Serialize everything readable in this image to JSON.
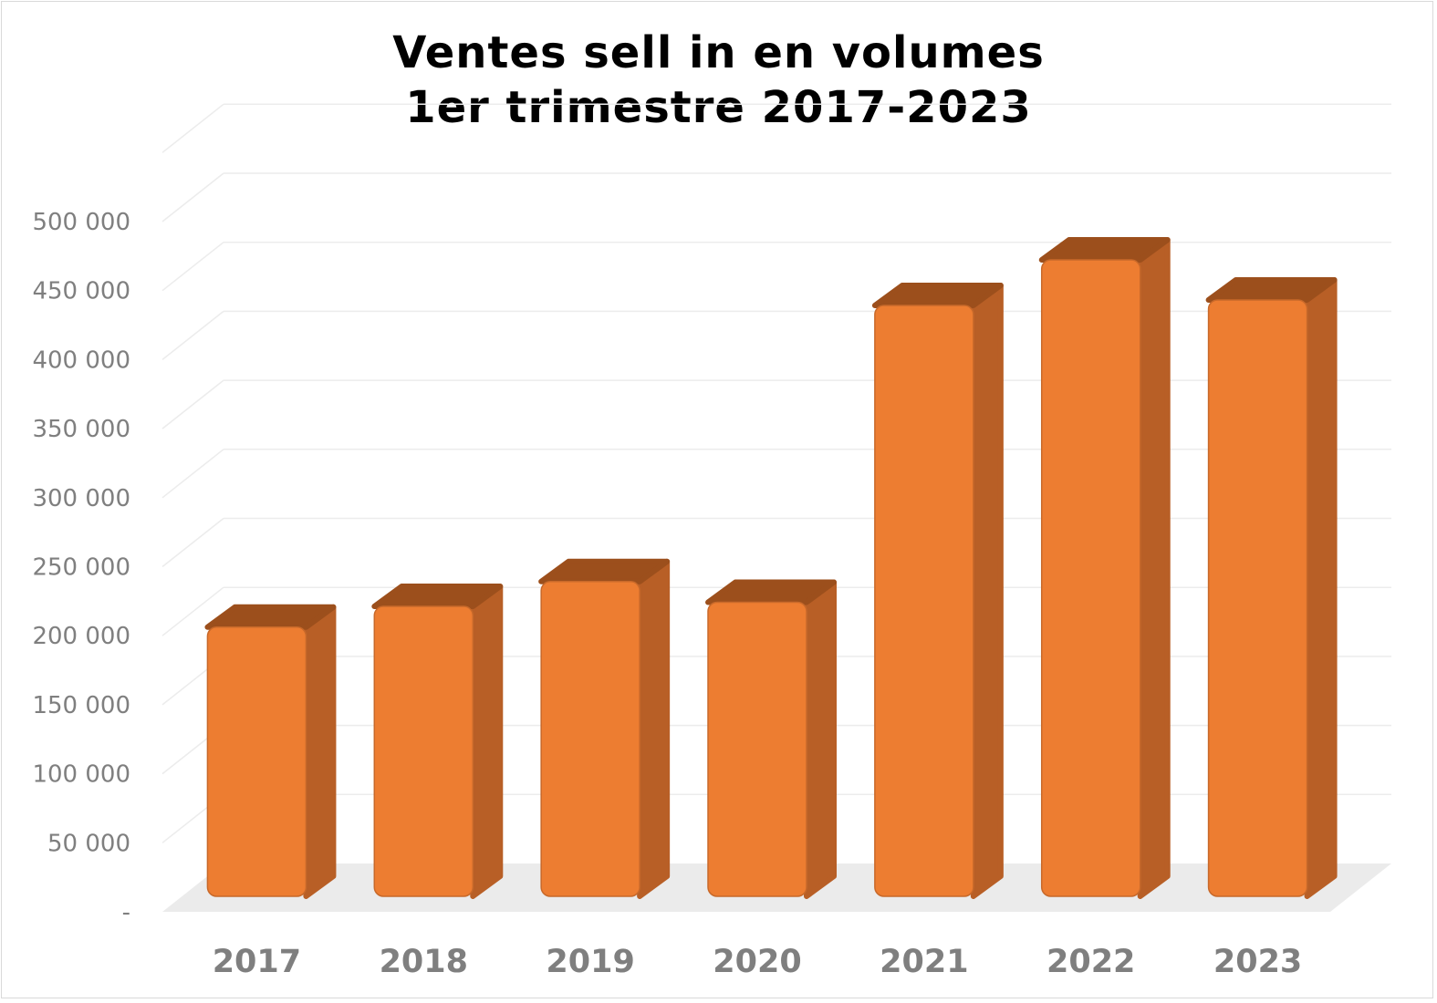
{
  "chart_data": {
    "type": "bar",
    "title": [
      "Ventes sell in en volumes",
      "1er trimestre 2017-2023"
    ],
    "xlabel": "",
    "ylabel": "",
    "categories": [
      "2017",
      "2018",
      "2019",
      "2020",
      "2021",
      "2022",
      "2023"
    ],
    "values": [
      195000,
      210000,
      228000,
      213000,
      428000,
      461000,
      432000
    ],
    "ylim": [
      0,
      500000
    ],
    "ytick_values": [
      0,
      50000,
      100000,
      150000,
      200000,
      250000,
      300000,
      350000,
      400000,
      450000,
      500000
    ],
    "ytick_labels": [
      "-",
      "50 000",
      "100 000",
      "150 000",
      "200 000",
      "250 000",
      "300 000",
      "350 000",
      "400 000",
      "450 000",
      "500 000"
    ],
    "grid": true,
    "style": "3d-column",
    "colors": {
      "bar_front": "#ed7d31",
      "bar_side": "#b85f26",
      "bar_top": "#9c4f1c",
      "floor": "#ebebeb",
      "grid": "#ececec",
      "tick_text": "#7f7f7f",
      "title_text": "#000000"
    }
  }
}
